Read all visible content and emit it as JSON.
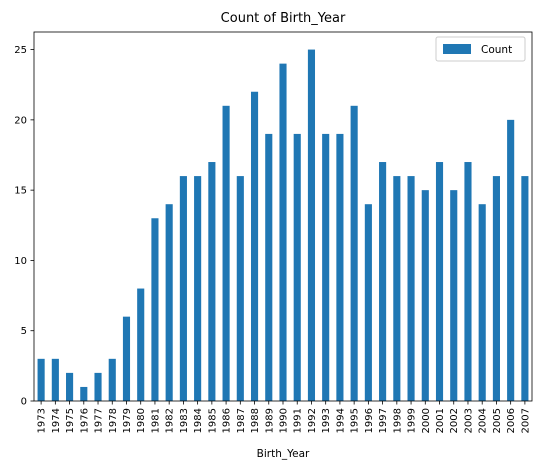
{
  "chart_data": {
    "type": "bar",
    "title": "Count of Birth_Year",
    "xlabel": "Birth_Year",
    "ylabel": "",
    "ylim": [
      0,
      26.25
    ],
    "yticks": [
      0,
      5,
      10,
      15,
      20,
      25
    ],
    "grid": false,
    "legend_position": "top-right",
    "bar_color": "#1f77b4",
    "categories": [
      "1973",
      "1974",
      "1975",
      "1976",
      "1977",
      "1978",
      "1979",
      "1980",
      "1981",
      "1982",
      "1983",
      "1984",
      "1985",
      "1986",
      "1987",
      "1988",
      "1989",
      "1990",
      "1991",
      "1992",
      "1993",
      "1994",
      "1995",
      "1996",
      "1997",
      "1998",
      "1999",
      "2000",
      "2001",
      "2002",
      "2003",
      "2004",
      "2005",
      "2006",
      "2007"
    ],
    "series": [
      {
        "name": "Count",
        "values": [
          3,
          3,
          2,
          1,
          2,
          3,
          6,
          8,
          13,
          14,
          16,
          16,
          17,
          21,
          16,
          22,
          19,
          24,
          19,
          25,
          19,
          19,
          21,
          14,
          17,
          16,
          16,
          15,
          17,
          15,
          17,
          14,
          16,
          20,
          16
        ]
      }
    ]
  }
}
